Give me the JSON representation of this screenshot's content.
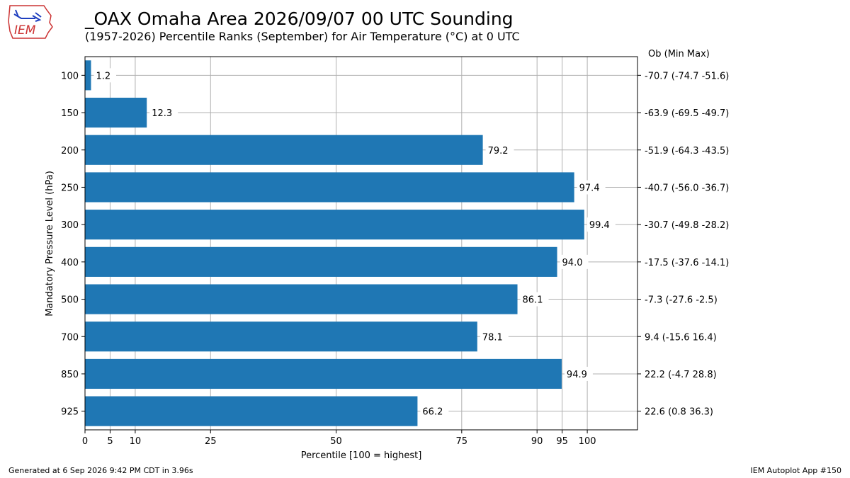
{
  "header": {
    "title": "_OAX Omaha Area  2026/09/07 00 UTC Sounding",
    "subtitle": "(1957-2026) Percentile Ranks (September) for Air Temperature (°C) at 0 UTC",
    "logo_text": "IEM"
  },
  "footer": {
    "left": "Generated at 6 Sep 2026 9:42 PM CDT in 3.96s",
    "right": "IEM Autoplot App #150"
  },
  "chart_data": {
    "type": "bar",
    "orientation": "horizontal",
    "xlabel": "Percentile [100 = highest]",
    "ylabel": "Mandatory Pressure Level (hPa)",
    "xlim": [
      0,
      110
    ],
    "xticks": [
      0,
      5,
      10,
      25,
      50,
      75,
      90,
      95,
      100
    ],
    "grid": true,
    "color": "#1f77b4",
    "right_header": "Ob  (Min  Max)",
    "categories": [
      "100",
      "150",
      "200",
      "250",
      "300",
      "400",
      "500",
      "700",
      "850",
      "925"
    ],
    "values": [
      1.2,
      12.3,
      79.2,
      97.4,
      99.4,
      94.0,
      86.1,
      78.1,
      94.9,
      66.2
    ],
    "value_labels": [
      "1.2",
      "12.3",
      "79.2",
      "97.4",
      "99.4",
      "94.0",
      "86.1",
      "78.1",
      "94.9",
      "66.2"
    ],
    "right_labels": [
      "-70.7 (-74.7 -51.6)",
      "-63.9 (-69.5 -49.7)",
      "-51.9 (-64.3 -43.5)",
      "-40.7 (-56.0 -36.7)",
      "-30.7 (-49.8 -28.2)",
      "-17.5 (-37.6 -14.1)",
      "-7.3 (-27.6 -2.5)",
      "9.4 (-15.6 16.4)",
      "22.2 (-4.7 28.8)",
      "22.6 (0.8 36.3)"
    ]
  }
}
